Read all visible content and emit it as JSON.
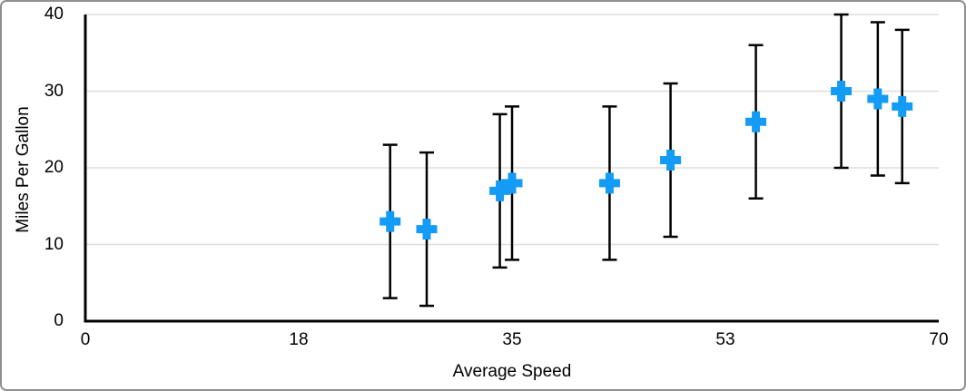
{
  "frame": {
    "background": "#ffffff",
    "border_color": "#8f8f8f"
  },
  "chart_data": {
    "type": "scatter",
    "title": "",
    "xlabel": "Average Speed",
    "ylabel": "Miles Per Gallon",
    "xlim": [
      0,
      70
    ],
    "ylim": [
      0,
      40
    ],
    "grid": "horizontal-only",
    "legend": "none",
    "axis_color": "#000000",
    "grid_color": "#dedede",
    "x_ticks": [
      {
        "value": 0,
        "label": "0"
      },
      {
        "value": 17.5,
        "label": "18"
      },
      {
        "value": 35,
        "label": "35"
      },
      {
        "value": 52.5,
        "label": "53"
      },
      {
        "value": 70,
        "label": "70"
      }
    ],
    "y_ticks": [
      {
        "value": 0,
        "label": "0"
      },
      {
        "value": 10,
        "label": "10"
      },
      {
        "value": 20,
        "label": "20"
      },
      {
        "value": 30,
        "label": "30"
      },
      {
        "value": 40,
        "label": "40"
      }
    ],
    "series": [
      {
        "name": "Miles Per Gallon",
        "marker": "plus",
        "marker_color": "#149bf5",
        "error_bar": {
          "type": "fixed",
          "value": 10,
          "color": "#000000"
        },
        "points": [
          {
            "x": 25,
            "y": 13
          },
          {
            "x": 28,
            "y": 12
          },
          {
            "x": 34,
            "y": 17
          },
          {
            "x": 35,
            "y": 18
          },
          {
            "x": 43,
            "y": 18
          },
          {
            "x": 48,
            "y": 21
          },
          {
            "x": 55,
            "y": 26
          },
          {
            "x": 62,
            "y": 30
          },
          {
            "x": 65,
            "y": 29
          },
          {
            "x": 67,
            "y": 28
          }
        ]
      }
    ]
  }
}
